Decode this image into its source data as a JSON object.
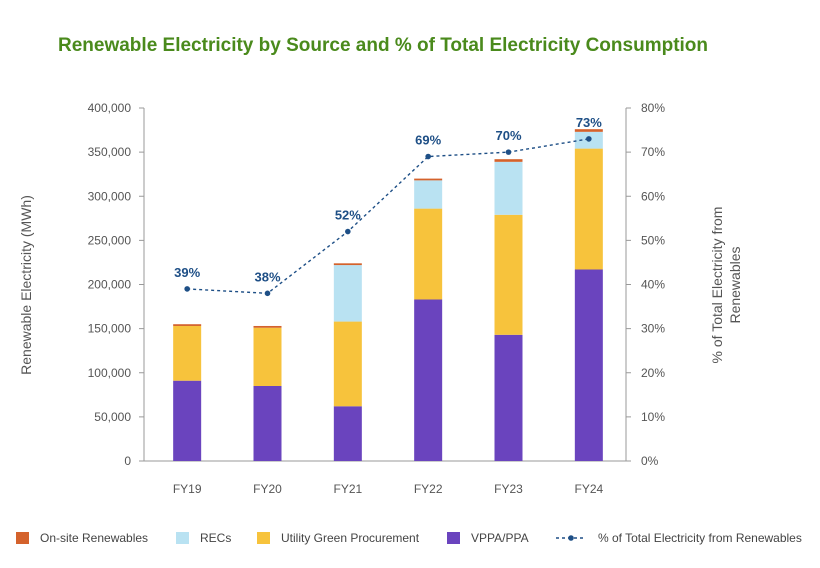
{
  "colors": {
    "title": "#4a8a1c",
    "onsite": "#d4622c",
    "recs": "#b9e2f2",
    "utility": "#f7c33c",
    "vppa": "#6a44be",
    "line": "#1e4f86",
    "axis": "#999999"
  },
  "chart_data": {
    "type": "bar",
    "title": "Renewable Electricity by Source and % of Total Electricity Consumption",
    "ylabel": "Renewable Electricity (MWh)",
    "y2label_lines": [
      "% of Total  Electricity from",
      "Renewables"
    ],
    "categories": [
      "FY19",
      "FY20",
      "FY21",
      "FY22",
      "FY23",
      "FY24"
    ],
    "ylim": [
      0,
      400000
    ],
    "y_ticks": [
      "0",
      "50,000",
      "100,000",
      "150,000",
      "200,000",
      "250,000",
      "300,000",
      "350,000",
      "400,000"
    ],
    "y2lim": [
      0,
      80
    ],
    "y2_ticks": [
      "0%",
      "10%",
      "20%",
      "30%",
      "40%",
      "50%",
      "60%",
      "70%",
      "80%"
    ],
    "stacked": true,
    "series": [
      {
        "name": "VPPA/PPA",
        "values": [
          91000,
          85000,
          62000,
          183000,
          143000,
          217000
        ]
      },
      {
        "name": "Utility Green Procurement",
        "values": [
          62000,
          66000,
          96000,
          103000,
          136000,
          137000
        ]
      },
      {
        "name": "RECs",
        "values": [
          0,
          0,
          64000,
          32000,
          60000,
          19000
        ]
      },
      {
        "name": "On-site Renewables",
        "values": [
          2000,
          2000,
          2000,
          2000,
          3000,
          3000
        ]
      }
    ],
    "line_series": {
      "name": "% of Total  Electricity from Renewables",
      "values": [
        39,
        38,
        52,
        69,
        70,
        73
      ],
      "labels": [
        "39%",
        "38%",
        "52%",
        "69%",
        "70%",
        "73%"
      ]
    },
    "legend": [
      {
        "name": "On-site Renewables",
        "kind": "box",
        "color_key": "onsite"
      },
      {
        "name": "RECs",
        "kind": "box",
        "color_key": "recs"
      },
      {
        "name": "Utility Green Procurement",
        "kind": "box",
        "color_key": "utility"
      },
      {
        "name": "VPPA/PPA",
        "kind": "box",
        "color_key": "vppa"
      },
      {
        "name": "% of Total  Electricity from Renewables",
        "kind": "line",
        "color_key": "line"
      }
    ],
    "legend_position": "bottom",
    "grid": false
  }
}
